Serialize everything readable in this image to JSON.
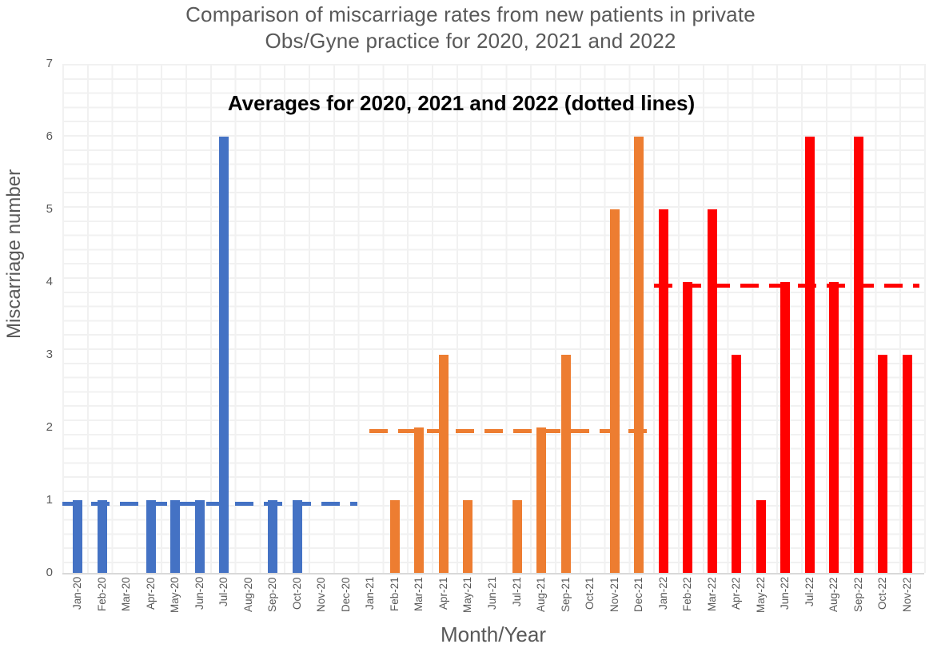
{
  "title": {
    "line1": "Comparison of miscarriage rates from new patients in private",
    "line2": "Obs/Gyne practice for 2020, 2021 and 2022"
  },
  "annotation": "Averages for 2020, 2021 and 2022 (dotted lines)",
  "y_axis": {
    "title": "Miscarriage number",
    "ticks": [
      "0",
      "1",
      "2",
      "3",
      "4",
      "5",
      "6",
      "7"
    ]
  },
  "x_axis": {
    "title": "Month/Year"
  },
  "chart_data": {
    "type": "bar",
    "title": "Comparison of miscarriage rates from new patients in private Obs/Gyne practice for 2020, 2021 and 2022",
    "subtitle": "Averages for 2020, 2021 and 2022 (dotted lines)",
    "xlabel": "Month/Year",
    "ylabel": "Miscarriage number",
    "ylim": [
      0,
      7
    ],
    "grid": "worksheet-cell background, no chart gridlines",
    "legend": "none",
    "categories": [
      "Jan-20",
      "Feb-20",
      "Mar-20",
      "Apr-20",
      "May-20",
      "Jun-20",
      "Jul-20",
      "Aug-20",
      "Sep-20",
      "Oct-20",
      "Nov-20",
      "Dec-20",
      "Jan-21",
      "Feb-21",
      "Mar-21",
      "Apr-21",
      "May-21",
      "Jun-21",
      "Jul-21",
      "Aug-21",
      "Sep-21",
      "Oct-21",
      "Nov-21",
      "Dec-21",
      "Jan-22",
      "Feb-22",
      "Mar-22",
      "Apr-22",
      "May-22",
      "Jun-22",
      "Jul-22",
      "Aug-22",
      "Sep-22",
      "Oct-22",
      "Nov-22"
    ],
    "values": [
      1,
      1,
      0,
      1,
      1,
      1,
      6,
      0,
      1,
      1,
      0,
      0,
      0,
      1,
      2,
      3,
      1,
      0,
      1,
      2,
      3,
      0,
      5,
      6,
      5,
      4,
      5,
      3,
      1,
      4,
      6,
      4,
      6,
      3,
      3
    ],
    "bar_colors_by_year": {
      "2020": "#4472C4",
      "2021": "#ED7D31",
      "2022": "#FF0000"
    },
    "average_lines": [
      {
        "year": "2020",
        "value": 0.95,
        "color": "#4472C4",
        "style": "dashed",
        "from_month_index": -0.62,
        "to_month_index": 11.46
      },
      {
        "year": "2021",
        "value": 1.95,
        "color": "#ED7D31",
        "style": "dashed",
        "from_month_index": 11.95,
        "to_month_index": 23.42
      },
      {
        "year": "2022",
        "value": 3.95,
        "color": "#FF0000",
        "style": "dashed",
        "from_month_index": 23.6,
        "to_month_index": 34.49
      }
    ]
  }
}
